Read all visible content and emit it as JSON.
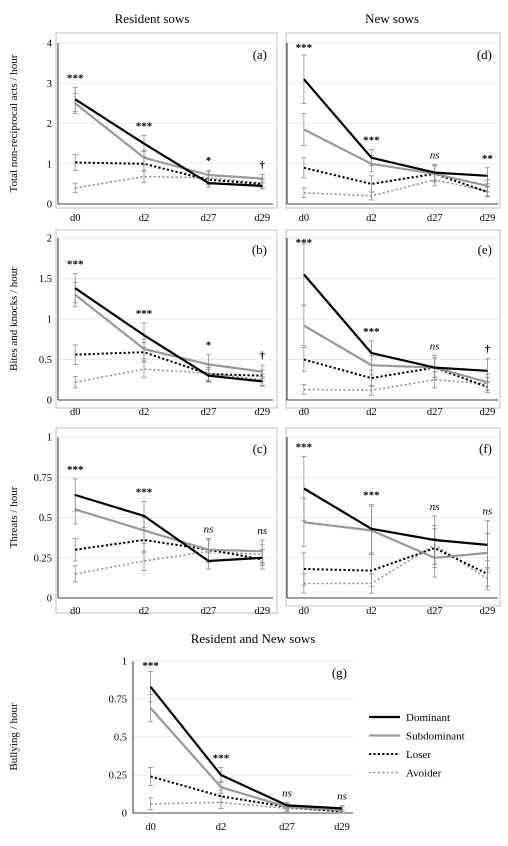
{
  "headings": {
    "left": "Resident sows",
    "right": "New sows",
    "bottom": "Resident and New sows"
  },
  "legend": [
    {
      "name": "Dominant",
      "color": "#000000",
      "dash": "solid",
      "width": 2.2
    },
    {
      "name": "Subdominant",
      "color": "#999999",
      "dash": "solid",
      "width": 2.2
    },
    {
      "name": "Loser",
      "color": "#000000",
      "dash": "dotted",
      "width": 2.0
    },
    {
      "name": "Avoider",
      "color": "#999999",
      "dash": "dotted",
      "width": 1.6
    }
  ],
  "chart_data": [
    {
      "id": "a",
      "label": "(a)",
      "type": "line",
      "ylabel": "Total non-reciprocal acts  / hour",
      "categories": [
        "d0",
        "d2",
        "d27",
        "d29"
      ],
      "ylim": [
        0,
        4
      ],
      "yticks": [
        "0",
        "1",
        "2",
        "3",
        "4"
      ],
      "ytick_values": [
        0,
        1,
        2,
        3,
        4
      ],
      "series": [
        {
          "name": "Dominant",
          "values": [
            2.6,
            1.5,
            0.52,
            0.45
          ],
          "errors": [
            0.3,
            0.2,
            0.1,
            0.08
          ]
        },
        {
          "name": "Subdominant",
          "values": [
            2.5,
            1.15,
            0.72,
            0.63
          ],
          "errors": [
            0.25,
            0.18,
            0.12,
            0.1
          ]
        },
        {
          "name": "Loser",
          "values": [
            1.03,
            1.0,
            0.6,
            0.5
          ],
          "errors": [
            0.2,
            0.18,
            0.12,
            0.1
          ]
        },
        {
          "name": "Avoider",
          "values": [
            0.4,
            0.68,
            0.65,
            0.52
          ],
          "errors": [
            0.12,
            0.15,
            0.15,
            0.12
          ]
        }
      ],
      "significance": [
        "***",
        "***",
        "*",
        "†"
      ]
    },
    {
      "id": "d",
      "label": "(d)",
      "type": "line",
      "ylabel": "",
      "categories": [
        "d0",
        "d2",
        "d27",
        "d29"
      ],
      "ylim": [
        0,
        4
      ],
      "yticks": [],
      "ytick_values": [
        0,
        1,
        2,
        3,
        4
      ],
      "series": [
        {
          "name": "Dominant",
          "values": [
            3.1,
            1.15,
            0.78,
            0.7
          ],
          "errors": [
            0.6,
            0.2,
            0.2,
            0.2
          ]
        },
        {
          "name": "Subdominant",
          "values": [
            1.85,
            1.0,
            0.75,
            0.45
          ],
          "errors": [
            0.4,
            0.2,
            0.2,
            0.15
          ]
        },
        {
          "name": "Loser",
          "values": [
            0.9,
            0.5,
            0.75,
            0.3
          ],
          "errors": [
            0.25,
            0.2,
            0.2,
            0.12
          ]
        },
        {
          "name": "Avoider",
          "values": [
            0.28,
            0.2,
            0.6,
            0.32
          ],
          "errors": [
            0.12,
            0.1,
            0.15,
            0.12
          ]
        }
      ],
      "significance": [
        "***",
        "***",
        "ns",
        "**"
      ]
    },
    {
      "id": "b",
      "label": "(b)",
      "type": "line",
      "ylabel": "Bites and knocks  / hour",
      "categories": [
        "d0",
        "d2",
        "d27",
        "d29"
      ],
      "ylim": [
        0,
        2
      ],
      "yticks": [
        "0",
        "0.5",
        "1",
        "1.5",
        "2"
      ],
      "ytick_values": [
        0,
        0.5,
        1,
        1.5,
        2
      ],
      "series": [
        {
          "name": "Dominant",
          "values": [
            1.38,
            0.8,
            0.3,
            0.23
          ],
          "errors": [
            0.18,
            0.15,
            0.08,
            0.06
          ]
        },
        {
          "name": "Subdominant",
          "values": [
            1.3,
            0.63,
            0.44,
            0.35
          ],
          "errors": [
            0.15,
            0.12,
            0.12,
            0.08
          ]
        },
        {
          "name": "Loser",
          "values": [
            0.56,
            0.59,
            0.32,
            0.3
          ],
          "errors": [
            0.12,
            0.12,
            0.08,
            0.07
          ]
        },
        {
          "name": "Avoider",
          "values": [
            0.22,
            0.38,
            0.33,
            0.25
          ],
          "errors": [
            0.07,
            0.1,
            0.1,
            0.07
          ]
        }
      ],
      "significance": [
        "***",
        "***",
        "*",
        "†"
      ]
    },
    {
      "id": "e",
      "label": "(e)",
      "type": "line",
      "ylabel": "",
      "categories": [
        "d0",
        "d2",
        "d27",
        "d29"
      ],
      "ylim": [
        0,
        2
      ],
      "yticks": [],
      "ytick_values": [
        0,
        0.5,
        1,
        1.5,
        2
      ],
      "series": [
        {
          "name": "Dominant",
          "values": [
            1.55,
            0.58,
            0.4,
            0.36
          ],
          "errors": [
            0.38,
            0.15,
            0.15,
            0.15
          ]
        },
        {
          "name": "Subdominant",
          "values": [
            0.92,
            0.43,
            0.4,
            0.22
          ],
          "errors": [
            0.25,
            0.12,
            0.12,
            0.1
          ]
        },
        {
          "name": "Loser",
          "values": [
            0.5,
            0.27,
            0.4,
            0.16
          ],
          "errors": [
            0.15,
            0.1,
            0.12,
            0.07
          ]
        },
        {
          "name": "Avoider",
          "values": [
            0.13,
            0.12,
            0.25,
            0.2
          ],
          "errors": [
            0.06,
            0.06,
            0.1,
            0.08
          ]
        }
      ],
      "significance": [
        "***",
        "***",
        "ns",
        "†"
      ]
    },
    {
      "id": "c",
      "label": "(c)",
      "type": "line",
      "ylabel": "Threats / hour",
      "categories": [
        "d0",
        "d2",
        "d27",
        "d29"
      ],
      "ylim": [
        0,
        1
      ],
      "yticks": [
        "0",
        "0.25",
        "0.5",
        "0.75",
        "1"
      ],
      "ytick_values": [
        0,
        0.25,
        0.5,
        0.75,
        1
      ],
      "series": [
        {
          "name": "Dominant",
          "values": [
            0.64,
            0.51,
            0.23,
            0.25
          ],
          "errors": [
            0.1,
            0.09,
            0.05,
            0.05
          ]
        },
        {
          "name": "Subdominant",
          "values": [
            0.55,
            0.42,
            0.3,
            0.29
          ],
          "errors": [
            0.09,
            0.08,
            0.07,
            0.07
          ]
        },
        {
          "name": "Loser",
          "values": [
            0.3,
            0.36,
            0.3,
            0.24
          ],
          "errors": [
            0.07,
            0.08,
            0.07,
            0.06
          ]
        },
        {
          "name": "Avoider",
          "values": [
            0.15,
            0.23,
            0.29,
            0.27
          ],
          "errors": [
            0.05,
            0.06,
            0.07,
            0.06
          ]
        }
      ],
      "significance": [
        "***",
        "***",
        "ns",
        "ns"
      ]
    },
    {
      "id": "f",
      "label": "(f)",
      "type": "line",
      "ylabel": "",
      "categories": [
        "d0",
        "d2",
        "d27",
        "d29"
      ],
      "ylim": [
        0,
        1
      ],
      "yticks": [],
      "ytick_values": [
        0,
        0.25,
        0.5,
        0.75,
        1
      ],
      "series": [
        {
          "name": "Dominant",
          "values": [
            0.68,
            0.43,
            0.36,
            0.33
          ],
          "errors": [
            0.2,
            0.15,
            0.15,
            0.15
          ]
        },
        {
          "name": "Subdominant",
          "values": [
            0.47,
            0.42,
            0.25,
            0.28
          ],
          "errors": [
            0.15,
            0.15,
            0.12,
            0.12
          ]
        },
        {
          "name": "Loser",
          "values": [
            0.18,
            0.17,
            0.31,
            0.15
          ],
          "errors": [
            0.1,
            0.1,
            0.12,
            0.08
          ]
        },
        {
          "name": "Avoider",
          "values": [
            0.09,
            0.09,
            0.33,
            0.12
          ],
          "errors": [
            0.06,
            0.06,
            0.12,
            0.07
          ]
        }
      ],
      "significance": [
        "***",
        "***",
        "ns",
        "ns"
      ]
    },
    {
      "id": "g",
      "label": "(g)",
      "type": "line",
      "ylabel": "Bullying / hour",
      "categories": [
        "d0",
        "d2",
        "d27",
        "d29"
      ],
      "ylim": [
        0,
        1
      ],
      "yticks": [
        "0",
        "0.25",
        "0.5",
        "0.75",
        "1"
      ],
      "ytick_values": [
        0,
        0.25,
        0.5,
        0.75,
        1
      ],
      "series": [
        {
          "name": "Dominant",
          "values": [
            0.83,
            0.25,
            0.05,
            0.03
          ],
          "errors": [
            0.1,
            0.05,
            0.02,
            0.02
          ]
        },
        {
          "name": "Subdominant",
          "values": [
            0.69,
            0.17,
            0.04,
            0.02
          ],
          "errors": [
            0.09,
            0.04,
            0.02,
            0.02
          ]
        },
        {
          "name": "Loser",
          "values": [
            0.24,
            0.11,
            0.04,
            0.01
          ],
          "errors": [
            0.06,
            0.04,
            0.02,
            0.01
          ]
        },
        {
          "name": "Avoider",
          "values": [
            0.06,
            0.07,
            0.03,
            0.01
          ],
          "errors": [
            0.04,
            0.04,
            0.02,
            0.01
          ]
        }
      ],
      "significance": [
        "***",
        "***",
        "ns",
        "ns"
      ]
    }
  ]
}
